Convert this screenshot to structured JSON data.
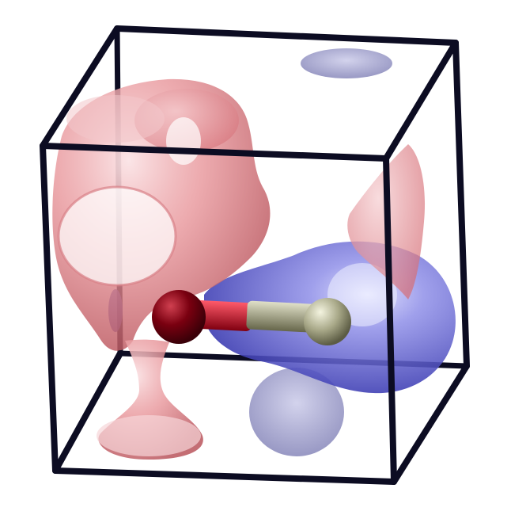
{
  "colors": {
    "background": "#ffffff",
    "box_edge": "#0c0c22",
    "positive_lobe": "#e07b80",
    "negative_lobe": "#3a3ac8",
    "atom_oxygen": "#7a0010",
    "atom_hydrogen": "#a8a888",
    "bond_oxygen_half": "#c0102a",
    "bond_hydrogen_half": "#8a8a6a"
  },
  "scene": {
    "objects": [
      "unit-cell-box",
      "positive-isosurface",
      "negative-isosurface",
      "oxygen-atom",
      "hydrogen-atom",
      "o-h-bond"
    ]
  }
}
